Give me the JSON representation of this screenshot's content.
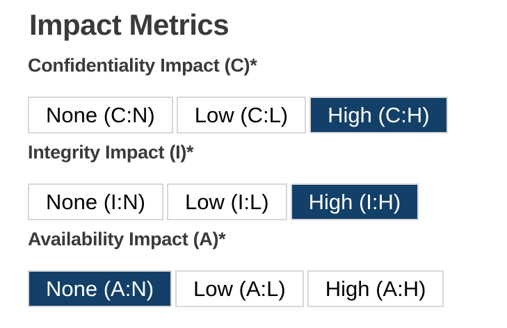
{
  "page": {
    "title": "Impact Metrics"
  },
  "colors": {
    "selected_bg": "#134068",
    "selected_text": "#ffffff",
    "button_border": "#d6d7d9",
    "button_bg": "#ffffff",
    "button_text": "#000000",
    "heading_text": "#3a3a3a"
  },
  "groups": [
    {
      "label": "Confidentiality Impact (C)*",
      "options": [
        {
          "label": "None (C:N)",
          "selected": false
        },
        {
          "label": "Low (C:L)",
          "selected": false
        },
        {
          "label": "High (C:H)",
          "selected": true
        }
      ]
    },
    {
      "label": "Integrity Impact (I)*",
      "options": [
        {
          "label": "None (I:N)",
          "selected": false
        },
        {
          "label": "Low (I:L)",
          "selected": false
        },
        {
          "label": "High (I:H)",
          "selected": true
        }
      ]
    },
    {
      "label": "Availability Impact (A)*",
      "options": [
        {
          "label": "None (A:N)",
          "selected": true
        },
        {
          "label": "Low (A:L)",
          "selected": false
        },
        {
          "label": "High (A:H)",
          "selected": false
        }
      ]
    }
  ]
}
